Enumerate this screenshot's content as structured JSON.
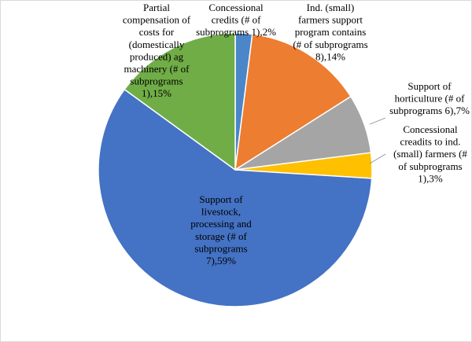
{
  "chart_data": {
    "type": "pie",
    "title": "",
    "slices": [
      {
        "label_lines": [
          "Concessional",
          "credits (# of",
          "subprograms 1),2%"
        ],
        "value": 2,
        "color": "#4a86c8"
      },
      {
        "label_lines": [
          "Ind. (small)",
          "farmers support",
          "program contains",
          "(# of subprograms",
          "8),14%"
        ],
        "value": 14,
        "color": "#ed7d31"
      },
      {
        "label_lines": [
          "Support of",
          "horticulture (# of",
          "subprograms 6),7%"
        ],
        "value": 7,
        "color": "#a5a5a5"
      },
      {
        "label_lines": [
          "Concessional",
          "creadits to ind.",
          "(small) farmers (#",
          "of subprograms",
          "1),3%"
        ],
        "value": 3,
        "color": "#ffc000"
      },
      {
        "label_lines": [
          "Support of",
          "livestock,",
          "processing and",
          "storage (# of",
          "subprograms",
          "7),59%"
        ],
        "value": 59,
        "color": "#4472c4"
      },
      {
        "label_lines": [
          "Partial",
          "compensation of",
          "costs for",
          "(domestically",
          "produced) ag",
          "machinery (# of",
          "subprograms",
          "1),15%"
        ],
        "value": 15,
        "color": "#70ad47"
      }
    ],
    "start_angle": "12 o'clock",
    "direction": "clockwise",
    "legend": "none"
  }
}
